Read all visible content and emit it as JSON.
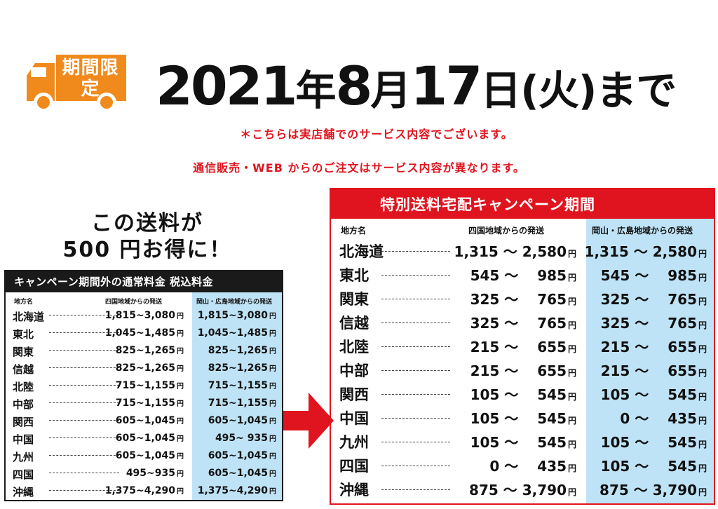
{
  "badge": {
    "text": "期間限定",
    "color": "#f08a1c"
  },
  "headline": {
    "year": "2021",
    "year_unit": "年",
    "month": "8",
    "month_unit": "月",
    "day": "17",
    "day_unit": "日",
    "weekday": "(火)",
    "suffix": "まで"
  },
  "notices": [
    "＊こちらは実店舗でのサービス内容でございます。",
    "通信販売・WEB からのご注文はサービス内容が異なります。"
  ],
  "savings_text": {
    "line1": "この送料が",
    "line2": "500 円お得に！"
  },
  "regular_table": {
    "title": "キャンペーン期間外の通常料金 税込料金",
    "col_region": "地方名",
    "col_shikoku": "四国地域からの発送",
    "col_okayama": "岡山・広島地域からの発送",
    "yen": "円",
    "rows": [
      {
        "region": "北海道",
        "shikoku": "1,815~3,080",
        "okayama": "1,815~3,080"
      },
      {
        "region": "東北",
        "shikoku": "1,045~1,485",
        "okayama": "1,045~1,485"
      },
      {
        "region": "関東",
        "shikoku": "825~1,265",
        "okayama": "825~1,265"
      },
      {
        "region": "信越",
        "shikoku": "825~1,265",
        "okayama": "825~1,265"
      },
      {
        "region": "北陸",
        "shikoku": "715~1,155",
        "okayama": "715~1,155"
      },
      {
        "region": "中部",
        "shikoku": "715~1,155",
        "okayama": "715~1,155"
      },
      {
        "region": "関西",
        "shikoku": "605~1,045",
        "okayama": "605~1,045"
      },
      {
        "region": "中国",
        "shikoku": "605~1,045",
        "okayama": "495~ 935"
      },
      {
        "region": "九州",
        "shikoku": "605~1,045",
        "okayama": "605~1,045"
      },
      {
        "region": "四国",
        "shikoku": "495~935",
        "okayama": "605~1,045"
      },
      {
        "region": "沖縄",
        "shikoku": "1,375~4,290",
        "okayama": "1,375~4,290"
      }
    ]
  },
  "campaign_table": {
    "title": "特別送料宅配キャンペーン期間",
    "col_region": "地方名",
    "col_shikoku": "四国地域からの発送",
    "col_okayama": "岡山・広島地域からの発送",
    "yen": "円",
    "rows": [
      {
        "region": "北海道",
        "shikoku": "1,315 ～ 2,580",
        "okayama": "1,315 ～ 2,580"
      },
      {
        "region": "東北",
        "shikoku": "545 ～　 985",
        "okayama": "545 ～　 985"
      },
      {
        "region": "関東",
        "shikoku": "325 ～　 765",
        "okayama": "325 ～　 765"
      },
      {
        "region": "信越",
        "shikoku": "325 ～　 765",
        "okayama": "325 ～　 765"
      },
      {
        "region": "北陸",
        "shikoku": "215 ～　 655",
        "okayama": "215 ～　 655"
      },
      {
        "region": "中部",
        "shikoku": "215 ～　 655",
        "okayama": "215 ～　 655"
      },
      {
        "region": "関西",
        "shikoku": "105 ～　 545",
        "okayama": "105 ～　 545"
      },
      {
        "region": "中国",
        "shikoku": "105 ～　 545",
        "okayama": "0 ～　 435"
      },
      {
        "region": "九州",
        "shikoku": "105 ～　 545",
        "okayama": "105 ～　 545"
      },
      {
        "region": "四国",
        "shikoku": "0 ～　 435",
        "okayama": "105 ～　 545"
      },
      {
        "region": "沖縄",
        "shikoku": "875 ～ 3,790",
        "okayama": "875 ～ 3,790"
      }
    ]
  },
  "colors": {
    "accent_red": "#e0141e",
    "highlight_blue": "#bfe3f6",
    "badge_orange": "#f08a1c"
  }
}
